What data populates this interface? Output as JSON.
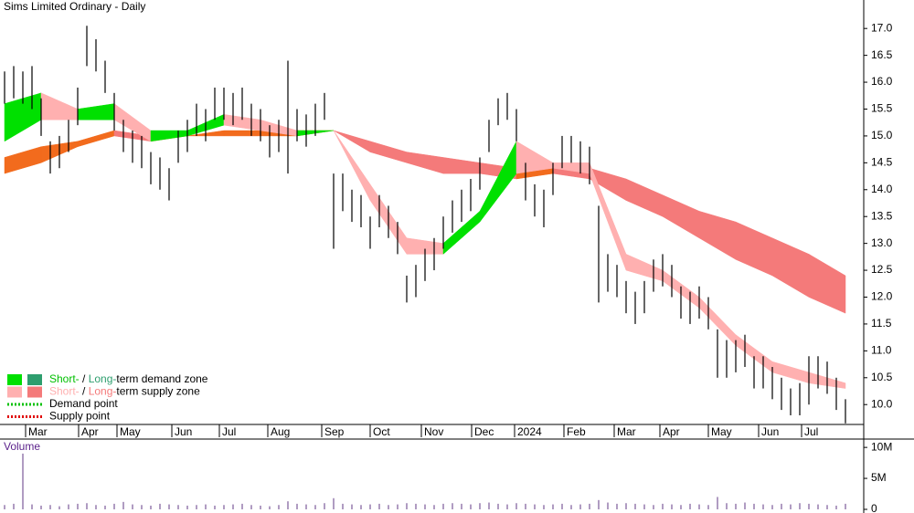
{
  "chart_data": {
    "type": "ohlc",
    "title": "Sims Limited Ordinary - Daily",
    "xlim": [
      -0.5,
      94
    ],
    "ylim": [
      9.63,
      17.53
    ],
    "yticks": [
      {
        "value": 10,
        "label": "10.0"
      },
      10.5,
      {
        "value": 11,
        "label": "11.0"
      },
      11.5,
      {
        "value": 12,
        "label": "12.0"
      },
      12.5,
      {
        "value": 13,
        "label": "13.0"
      },
      13.5,
      {
        "value": 14,
        "label": "14.0"
      },
      14.5,
      {
        "value": 15,
        "label": "15.0"
      },
      15.5,
      {
        "value": 16,
        "label": "16.0"
      },
      16.5,
      {
        "value": 17,
        "label": "17.0"
      }
    ],
    "xticks": [
      {
        "value": 2.3,
        "label": "Mar"
      },
      {
        "value": 8.1,
        "label": "Apr"
      },
      {
        "value": 12.3,
        "label": "May"
      },
      {
        "value": 18.3,
        "label": "Jun"
      },
      {
        "value": 23.5,
        "label": "Jul"
      },
      {
        "value": 28.8,
        "label": "Aug"
      },
      {
        "value": 34.7,
        "label": "Sep"
      },
      {
        "value": 40,
        "label": "Oct"
      },
      {
        "value": 45.6,
        "label": "Nov"
      },
      {
        "value": 51.1,
        "label": "Dec"
      },
      {
        "value": 55.8,
        "label": "2024"
      },
      {
        "value": 61.2,
        "label": "Feb"
      },
      {
        "value": 66.7,
        "label": "Mar"
      },
      {
        "value": 71.7,
        "label": "Apr"
      },
      {
        "value": 77,
        "label": "May"
      },
      {
        "value": 82.5,
        "label": "Jun"
      },
      {
        "value": 87.2,
        "label": "Jul"
      }
    ],
    "bar_color": "#000000",
    "high": [
      16.2,
      16.3,
      16.2,
      16.3,
      15.7,
      14.9,
      15.0,
      15.3,
      15.9,
      17.05,
      16.8,
      16.4,
      15.8,
      15.3,
      15.1,
      15.0,
      14.7,
      14.6,
      14.4,
      15.1,
      15.3,
      15.6,
      15.5,
      15.9,
      15.9,
      15.8,
      15.9,
      15.6,
      15.5,
      15.2,
      15.3,
      16.4,
      15.5,
      15.4,
      15.6,
      15.8,
      14.3,
      14.3,
      14.0,
      13.9,
      13.5,
      13.9,
      13.7,
      13.4,
      12.4,
      12.6,
      12.9,
      13.1,
      13.5,
      13.8,
      14.0,
      14.2,
      14.6,
      15.3,
      15.7,
      15.8,
      15.5,
      14.5,
      14.1,
      14.0,
      14.5,
      15.0,
      15.0,
      14.9,
      14.8,
      13.7,
      12.8,
      12.6,
      12.3,
      12.1,
      12.3,
      12.7,
      12.8,
      12.6,
      12.2,
      12.1,
      12.2,
      12.0,
      11.4,
      11.2,
      11.2,
      11.3,
      10.9,
      10.9,
      10.7,
      10.5,
      10.3,
      10.4,
      10.9,
      10.9,
      10.8,
      10.5,
      10.1
    ],
    "low": [
      15.6,
      15.7,
      15.6,
      15.5,
      15.0,
      14.3,
      14.4,
      14.7,
      15.2,
      16.3,
      16.2,
      15.8,
      15.1,
      14.7,
      14.5,
      14.4,
      14.1,
      14.0,
      13.8,
      14.5,
      14.7,
      15.0,
      14.9,
      15.3,
      15.3,
      15.2,
      15.3,
      15.0,
      14.9,
      14.6,
      14.7,
      14.3,
      14.9,
      14.8,
      15.0,
      15.3,
      12.9,
      13.6,
      13.4,
      13.3,
      12.9,
      13.3,
      13.1,
      12.8,
      11.9,
      12.0,
      12.3,
      12.5,
      12.9,
      13.2,
      13.4,
      13.6,
      14.0,
      14.7,
      15.2,
      15.3,
      14.9,
      13.8,
      13.5,
      13.3,
      13.9,
      14.4,
      14.5,
      14.3,
      14.1,
      11.9,
      12.1,
      12.0,
      11.7,
      11.5,
      11.7,
      12.1,
      12.2,
      12.0,
      11.6,
      11.5,
      11.6,
      11.4,
      10.5,
      10.5,
      10.6,
      10.7,
      10.3,
      10.3,
      10.1,
      9.9,
      9.8,
      9.8,
      10.0,
      10.3,
      10.2,
      9.9,
      9.65
    ],
    "zone_x": [
      0,
      4,
      8,
      12,
      16,
      20,
      24,
      28,
      32,
      36,
      40,
      44,
      48,
      52,
      56,
      60,
      64,
      68,
      72,
      76,
      80,
      84,
      88,
      92
    ],
    "zones": [
      {
        "upper": [
          14.6,
          14.8,
          14.9,
          15.1,
          15.0,
          15.0,
          15.1,
          15.1,
          15.1,
          15.1,
          14.9,
          14.7,
          14.6,
          14.5,
          14.4,
          14.4,
          14.4,
          14.2,
          13.9,
          13.6,
          13.4,
          13.1,
          12.8,
          12.4
        ],
        "lower": [
          14.3,
          14.5,
          14.8,
          15.0,
          14.9,
          15.0,
          15.0,
          15.0,
          15.0,
          15.1,
          14.7,
          14.5,
          14.3,
          14.3,
          14.2,
          14.3,
          14.2,
          13.8,
          13.5,
          13.1,
          12.7,
          12.4,
          12.0,
          11.7
        ],
        "up_color": "#f26b1d",
        "down_color": "#f47a7a"
      },
      {
        "upper": [
          15.6,
          15.8,
          15.5,
          15.6,
          15.1,
          15.1,
          15.4,
          15.3,
          15.1,
          15.1,
          14.1,
          13.1,
          13.0,
          13.6,
          14.9,
          14.5,
          14.5,
          12.8,
          12.5,
          12.0,
          11.3,
          10.8,
          10.6,
          10.4
        ],
        "lower": [
          14.9,
          15.3,
          15.3,
          15.3,
          14.9,
          15.0,
          15.2,
          15.1,
          15.0,
          15.1,
          13.8,
          12.8,
          12.8,
          13.4,
          14.3,
          14.4,
          14.3,
          12.5,
          12.3,
          11.8,
          11.1,
          10.6,
          10.4,
          10.3
        ],
        "up_color": "#00e000",
        "down_color": "#ffb0b0"
      }
    ],
    "legend": [
      {
        "colors": [
          "#00e000",
          "#2e9e6e"
        ],
        "parts": [
          {
            "text": "Short-",
            "color": "#00c000"
          },
          {
            "text": " / ",
            "color": "#000000"
          },
          {
            "text": "Long-",
            "color": "#2e9e6e"
          },
          {
            "text": "term demand zone",
            "color": "#000000"
          }
        ]
      },
      {
        "colors": [
          "#ffb0b0",
          "#f47a7a"
        ],
        "parts": [
          {
            "text": "Short-",
            "color": "#ffb0b0"
          },
          {
            "text": " / ",
            "color": "#000000"
          },
          {
            "text": "Long-",
            "color": "#f47a7a"
          },
          {
            "text": "term supply zone",
            "color": "#000000"
          }
        ]
      },
      {
        "line_color": "#00c000",
        "parts": [
          {
            "text": "Demand point",
            "color": "#000000"
          }
        ]
      },
      {
        "line_color": "#e00000",
        "parts": [
          {
            "text": "Supply point",
            "color": "#000000"
          }
        ]
      }
    ],
    "volume": {
      "label": "Volume",
      "color": "#7b5a9a",
      "ylim": [
        0,
        11200000
      ],
      "yticks": [
        {
          "value": 0,
          "label": "0"
        },
        {
          "value": 5000000,
          "label": "5M"
        },
        {
          "value": 10000000,
          "label": "10M"
        }
      ],
      "values": [
        700000,
        900000,
        9000000,
        800000,
        600000,
        700000,
        500000,
        800000,
        900000,
        1000000,
        700000,
        600000,
        900000,
        1200000,
        800000,
        700000,
        600000,
        900000,
        800000,
        700000,
        600000,
        700000,
        800000,
        600000,
        700000,
        800000,
        900000,
        700000,
        600000,
        500000,
        700000,
        1300000,
        900000,
        800000,
        700000,
        1000000,
        1800000,
        900000,
        800000,
        700000,
        800000,
        900000,
        700000,
        800000,
        1000000,
        900000,
        800000,
        700000,
        900000,
        1000000,
        900000,
        800000,
        1000000,
        1100000,
        900000,
        800000,
        1000000,
        900000,
        800000,
        700000,
        800000,
        900000,
        700000,
        800000,
        900000,
        1500000,
        1100000,
        900000,
        1000000,
        900000,
        800000,
        700000,
        900000,
        800000,
        700000,
        900000,
        800000,
        700000,
        2000000,
        1000000,
        900000,
        1100000,
        900000,
        800000,
        700000,
        900000,
        800000,
        1000000,
        900000,
        800000,
        700000,
        600000,
        900000
      ]
    }
  }
}
